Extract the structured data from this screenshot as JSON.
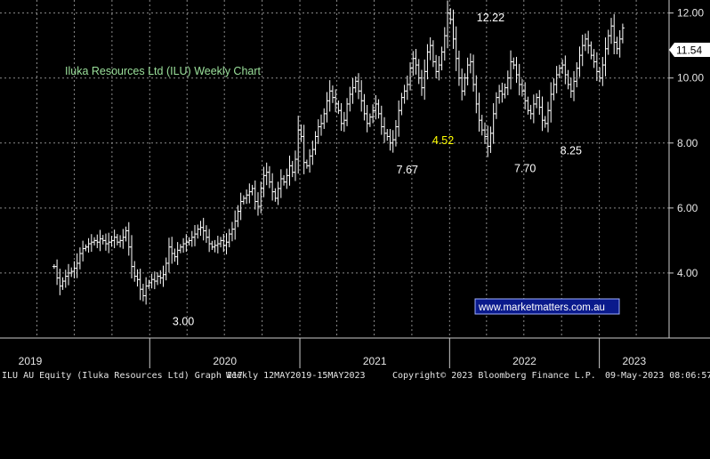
{
  "chart_data": {
    "type": "ohlc",
    "title": "Iluka Resources Ltd (ILU) Weekly Chart",
    "watermark": "www.marketmatters.com.au",
    "ylim": [
      2.0,
      12.4
    ],
    "y_ticks": [
      "4.00",
      "6.00",
      "8.00",
      "10.00",
      "12.00"
    ],
    "x_labels": [
      "2019",
      "2020",
      "2021",
      "2022",
      "2023"
    ],
    "last_price": "11.54",
    "annotations": [
      {
        "label": "12.22",
        "value": 12.22,
        "date": "2022-04-11"
      },
      {
        "label": "3.00",
        "value": 3.0,
        "date": "2020-03-23"
      },
      {
        "label": "7.67",
        "value": 7.67,
        "date": "2021-09-20"
      },
      {
        "label": "4.52",
        "value": 4.52,
        "date": "2021-12-06"
      },
      {
        "label": "7.70",
        "value": 7.7,
        "date": "2022-07-04"
      },
      {
        "label": "8.25",
        "value": 8.25,
        "date": "2022-10-24"
      }
    ],
    "series": {
      "dates_start": "2019-05-13",
      "period": "weekly",
      "closes": [
        4.2,
        3.85,
        3.6,
        3.75,
        3.9,
        4.0,
        4.05,
        4.15,
        4.3,
        4.6,
        4.75,
        4.8,
        4.9,
        4.95,
        5.0,
        4.95,
        5.05,
        5.0,
        4.9,
        4.95,
        5.0,
        5.1,
        4.95,
        5.0,
        5.1,
        5.3,
        4.8,
        4.2,
        3.9,
        3.8,
        3.5,
        3.3,
        3.6,
        3.7,
        3.8,
        3.75,
        3.9,
        3.85,
        3.95,
        4.3,
        4.8,
        4.6,
        4.5,
        4.7,
        4.8,
        4.9,
        4.95,
        5.0,
        5.1,
        5.2,
        5.35,
        5.4,
        5.3,
        5.1,
        4.9,
        4.8,
        4.85,
        4.9,
        5.0,
        4.85,
        4.95,
        5.2,
        5.35,
        5.6,
        5.9,
        6.2,
        6.3,
        6.4,
        6.5,
        6.6,
        6.2,
        6.05,
        6.6,
        7.0,
        7.1,
        6.8,
        6.5,
        6.3,
        6.6,
        6.9,
        6.8,
        7.0,
        7.3,
        7.1,
        7.5,
        8.4,
        8.2,
        7.4,
        7.3,
        7.6,
        7.8,
        8.2,
        8.5,
        8.6,
        8.9,
        9.3,
        9.6,
        9.4,
        9.2,
        9.0,
        8.6,
        8.7,
        9.2,
        9.5,
        9.7,
        9.9,
        9.6,
        9.3,
        8.9,
        8.6,
        8.8,
        9.0,
        9.2,
        8.9,
        8.5,
        8.3,
        8.2,
        8.0,
        8.1,
        8.5,
        9.0,
        9.4,
        9.6,
        9.8,
        10.3,
        10.6,
        10.4,
        10.0,
        9.7,
        10.2,
        10.8,
        11.0,
        10.5,
        10.2,
        10.4,
        10.8,
        11.3,
        12.0,
        11.8,
        11.2,
        10.6,
        10.0,
        9.6,
        10.0,
        10.4,
        10.5,
        9.8,
        9.2,
        8.7,
        8.4,
        8.2,
        7.9,
        8.3,
        8.9,
        9.4,
        9.6,
        9.5,
        9.7,
        10.0,
        10.5,
        10.4,
        10.1,
        9.8,
        9.6,
        9.3,
        9.0,
        8.9,
        9.2,
        9.4,
        9.1,
        8.7,
        8.6,
        9.0,
        9.5,
        9.8,
        10.1,
        10.3,
        10.4,
        10.1,
        9.8,
        9.6,
        9.9,
        10.3,
        10.7,
        11.0,
        11.2,
        11.0,
        10.7,
        10.5,
        10.2,
        10.0,
        10.4,
        10.9,
        11.3,
        11.6,
        11.1,
        10.9,
        11.2,
        11.54
      ]
    }
  },
  "footer": {
    "security": "ILU AU Equity (Iluka Resources Ltd) Graph 217",
    "range": "Weekly 12MAY2019-15MAY2023",
    "copyright": "Copyright© 2023 Bloomberg Finance L.P.",
    "timestamp": "09-May-2023 08:06:57"
  }
}
